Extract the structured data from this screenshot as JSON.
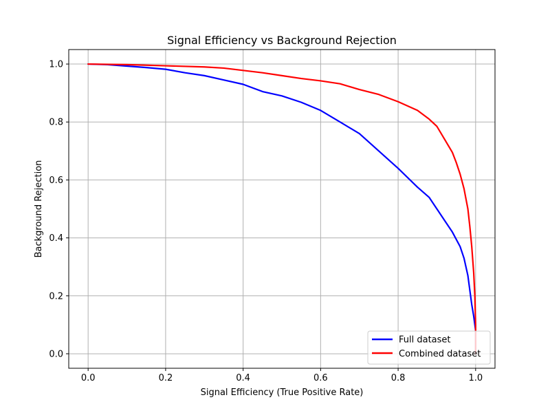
{
  "chart_data": {
    "type": "line",
    "title": "Signal Efficiency vs Background Rejection",
    "xlabel": "Signal Efficiency (True Positive Rate)",
    "ylabel": "Background Rejection",
    "xlim": [
      -0.05,
      1.05
    ],
    "ylim": [
      -0.05,
      1.05
    ],
    "xticks": [
      0.0,
      0.2,
      0.4,
      0.6,
      0.8,
      1.0
    ],
    "xtick_labels": [
      "0.0",
      "0.2",
      "0.4",
      "0.6",
      "0.8",
      "1.0"
    ],
    "yticks": [
      0.0,
      0.2,
      0.4,
      0.6,
      0.8,
      1.0
    ],
    "ytick_labels": [
      "0.0",
      "0.2",
      "0.4",
      "0.6",
      "0.8",
      "1.0"
    ],
    "grid": true,
    "legend_position": "lower-right",
    "series": [
      {
        "name": "Full dataset",
        "color": "#0000ff",
        "x": [
          0.0,
          0.05,
          0.1,
          0.15,
          0.2,
          0.25,
          0.3,
          0.35,
          0.4,
          0.45,
          0.5,
          0.55,
          0.6,
          0.65,
          0.7,
          0.75,
          0.8,
          0.85,
          0.88,
          0.9,
          0.92,
          0.94,
          0.96,
          0.97,
          0.98,
          0.985,
          0.99,
          0.995,
          1.0,
          1.0
        ],
        "y": [
          1.0,
          0.998,
          0.993,
          0.988,
          0.982,
          0.97,
          0.96,
          0.945,
          0.93,
          0.905,
          0.89,
          0.868,
          0.84,
          0.8,
          0.76,
          0.7,
          0.64,
          0.575,
          0.54,
          0.5,
          0.46,
          0.42,
          0.37,
          0.33,
          0.27,
          0.22,
          0.17,
          0.13,
          0.08,
          0.0
        ]
      },
      {
        "name": "Combined dataset",
        "color": "#ff0000",
        "x": [
          0.0,
          0.1,
          0.2,
          0.3,
          0.35,
          0.4,
          0.45,
          0.5,
          0.55,
          0.6,
          0.65,
          0.7,
          0.75,
          0.8,
          0.85,
          0.88,
          0.9,
          0.92,
          0.94,
          0.95,
          0.96,
          0.97,
          0.98,
          0.985,
          0.99,
          0.995,
          0.998,
          1.0,
          1.0
        ],
        "y": [
          1.0,
          0.998,
          0.994,
          0.99,
          0.986,
          0.978,
          0.97,
          0.96,
          0.95,
          0.942,
          0.932,
          0.912,
          0.895,
          0.87,
          0.84,
          0.81,
          0.785,
          0.74,
          0.695,
          0.66,
          0.62,
          0.57,
          0.5,
          0.44,
          0.37,
          0.28,
          0.2,
          0.1,
          0.0
        ]
      }
    ]
  }
}
